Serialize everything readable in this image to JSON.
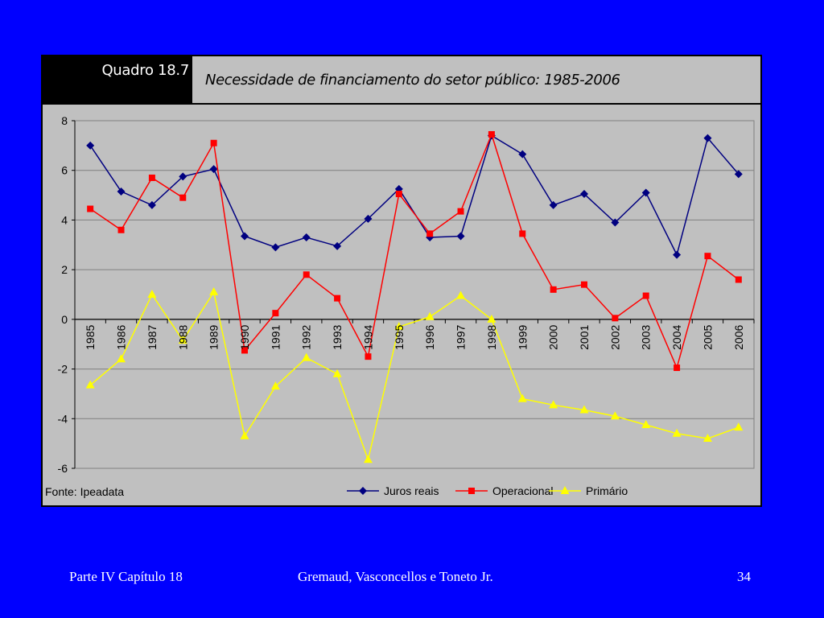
{
  "slide": {
    "label": "Quadro 18.7",
    "footer_left": "Parte IV Capítulo 18",
    "footer_center": "Gremaud, Vasconcellos e Toneto Jr.",
    "footer_right": "34",
    "background_color": "#0000FF"
  },
  "chart_data": {
    "type": "line",
    "title": "Necessidade de financiamento do setor público: 1985-2006",
    "source": "Fonte: Ipeadata",
    "xlabel": "",
    "ylabel": "",
    "categories": [
      "1985",
      "1986",
      "1987",
      "1988",
      "1989",
      "1990",
      "1991",
      "1992",
      "1993",
      "1994",
      "1995",
      "1996",
      "1997",
      "1998",
      "1999",
      "2000",
      "2001",
      "2002",
      "2003",
      "2004",
      "2005",
      "2006"
    ],
    "ylim": [
      -6,
      8
    ],
    "yticks": [
      8,
      6,
      4,
      2,
      0,
      -2,
      -4,
      -6
    ],
    "grid": true,
    "legend_position": "bottom",
    "series": [
      {
        "name": "Juros reais",
        "color": "#000080",
        "marker": "diamond",
        "values": [
          7.0,
          5.15,
          4.6,
          5.75,
          6.05,
          3.35,
          2.9,
          3.3,
          2.95,
          4.05,
          5.25,
          3.3,
          3.35,
          7.4,
          6.65,
          4.6,
          5.05,
          3.9,
          5.1,
          2.6,
          7.3,
          5.85
        ]
      },
      {
        "name": "Operacional",
        "color": "#FF0000",
        "marker": "square",
        "values": [
          4.45,
          3.6,
          5.7,
          4.9,
          7.1,
          -1.25,
          0.25,
          1.8,
          0.85,
          -1.5,
          5.05,
          3.45,
          4.35,
          7.45,
          3.45,
          1.2,
          1.4,
          0.05,
          0.95,
          -1.95,
          2.55,
          1.6
        ]
      },
      {
        "name": "Primário",
        "color": "#FFFF00",
        "marker": "triangle",
        "values": [
          -2.65,
          -1.6,
          1.0,
          -0.85,
          1.1,
          -4.7,
          -2.7,
          -1.55,
          -2.2,
          -5.65,
          -0.3,
          0.1,
          0.95,
          0.0,
          -3.2,
          -3.45,
          -3.65,
          -3.9,
          -4.25,
          -4.6,
          -4.8,
          -4.35
        ]
      }
    ]
  }
}
